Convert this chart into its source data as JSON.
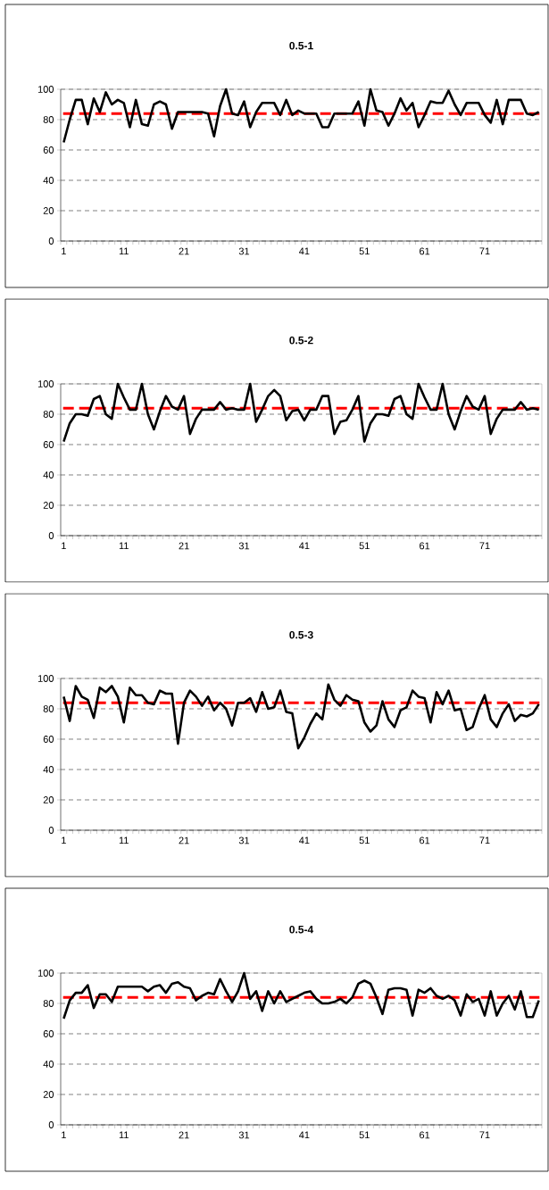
{
  "chart_data": [
    {
      "type": "line",
      "title": "0.5-1",
      "categories": [
        "1",
        null,
        null,
        null,
        null,
        null,
        null,
        null,
        null,
        null,
        "11",
        null,
        null,
        null,
        null,
        null,
        null,
        null,
        null,
        null,
        "21",
        null,
        null,
        null,
        null,
        null,
        null,
        null,
        null,
        null,
        "31",
        null,
        null,
        null,
        null,
        null,
        null,
        null,
        null,
        null,
        "41",
        null,
        null,
        null,
        null,
        null,
        null,
        null,
        null,
        null,
        "51",
        null,
        null,
        null,
        null,
        null,
        null,
        null,
        null,
        null,
        "61",
        null,
        null,
        null,
        null,
        null,
        null,
        null,
        null,
        null,
        "71",
        null,
        null,
        null,
        null,
        null,
        null,
        null,
        null,
        null
      ],
      "series": [
        {
          "color": "#000000",
          "values": [
            65,
            80,
            93,
            93,
            77,
            94,
            85,
            98,
            90,
            93,
            91,
            75,
            93,
            77,
            76,
            90,
            92,
            90,
            74,
            85,
            85,
            85,
            85,
            85,
            84,
            69,
            89,
            100,
            84,
            83,
            92,
            75,
            85,
            91,
            91,
            91,
            83,
            93,
            83,
            86,
            84,
            84,
            84,
            75,
            75,
            84,
            84,
            84,
            84,
            92,
            76,
            100,
            86,
            85,
            76,
            84,
            94,
            86,
            91,
            75,
            83,
            92,
            91,
            91,
            99,
            90,
            83,
            91,
            91,
            91,
            83,
            78,
            93,
            77,
            93,
            93,
            93,
            84,
            83,
            85
          ]
        }
      ],
      "ylim": [
        0,
        100
      ],
      "yticks": [
        0,
        20,
        40,
        60,
        80,
        100
      ],
      "grid": "y",
      "ref_lines": [
        {
          "axis": "y",
          "value": 84,
          "color": "#ff0000",
          "line_style": "dashed"
        }
      ]
    },
    {
      "type": "line",
      "title": "0.5-2",
      "categories": [
        "1",
        null,
        null,
        null,
        null,
        null,
        null,
        null,
        null,
        null,
        "11",
        null,
        null,
        null,
        null,
        null,
        null,
        null,
        null,
        null,
        "21",
        null,
        null,
        null,
        null,
        null,
        null,
        null,
        null,
        null,
        "31",
        null,
        null,
        null,
        null,
        null,
        null,
        null,
        null,
        null,
        "41",
        null,
        null,
        null,
        null,
        null,
        null,
        null,
        null,
        null,
        "51",
        null,
        null,
        null,
        null,
        null,
        null,
        null,
        null,
        null,
        "61",
        null,
        null,
        null,
        null,
        null,
        null,
        null,
        null,
        null,
        "71",
        null,
        null,
        null,
        null,
        null,
        null,
        null,
        null,
        null
      ],
      "series": [
        {
          "color": "#000000",
          "values": [
            62,
            74,
            80,
            80,
            79,
            90,
            92,
            80,
            77,
            100,
            91,
            83,
            83,
            100,
            80,
            70,
            82,
            92,
            85,
            83,
            92,
            67,
            77,
            83,
            83,
            83,
            88,
            83,
            84,
            83,
            83,
            100,
            75,
            83,
            92,
            96,
            92,
            76,
            82,
            83,
            76,
            83,
            83,
            92,
            92,
            67,
            75,
            76,
            83,
            92,
            62,
            74,
            80,
            80,
            79,
            90,
            92,
            80,
            77,
            100,
            91,
            83,
            83,
            100,
            80,
            70,
            82,
            92,
            85,
            83,
            92,
            67,
            77,
            83,
            83,
            83,
            88,
            83,
            84,
            83
          ]
        }
      ],
      "ylim": [
        0,
        100
      ],
      "yticks": [
        0,
        20,
        40,
        60,
        80,
        100
      ],
      "grid": "y",
      "ref_lines": [
        {
          "axis": "y",
          "value": 84,
          "color": "#ff0000",
          "line_style": "dashed"
        }
      ]
    },
    {
      "type": "line",
      "title": "0.5-3",
      "categories": [
        "1",
        null,
        null,
        null,
        null,
        null,
        null,
        null,
        null,
        null,
        "11",
        null,
        null,
        null,
        null,
        null,
        null,
        null,
        null,
        null,
        "21",
        null,
        null,
        null,
        null,
        null,
        null,
        null,
        null,
        null,
        "31",
        null,
        null,
        null,
        null,
        null,
        null,
        null,
        null,
        null,
        "41",
        null,
        null,
        null,
        null,
        null,
        null,
        null,
        null,
        null,
        "51",
        null,
        null,
        null,
        null,
        null,
        null,
        null,
        null,
        null,
        "61",
        null,
        null,
        null,
        null,
        null,
        null,
        null,
        null,
        null,
        "71",
        null,
        null,
        null,
        null,
        null,
        null,
        null,
        null,
        null
      ],
      "series": [
        {
          "color": "#000000",
          "values": [
            88,
            72,
            95,
            88,
            86,
            74,
            94,
            91,
            95,
            88,
            71,
            94,
            89,
            89,
            84,
            83,
            92,
            90,
            90,
            57,
            84,
            92,
            88,
            82,
            88,
            79,
            84,
            80,
            69,
            84,
            84,
            87,
            78,
            91,
            80,
            81,
            92,
            78,
            77,
            54,
            61,
            70,
            77,
            73,
            96,
            86,
            82,
            89,
            86,
            85,
            71,
            65,
            69,
            85,
            73,
            68,
            79,
            81,
            92,
            88,
            87,
            71,
            91,
            83,
            92,
            79,
            80,
            66,
            68,
            80,
            89,
            73,
            68,
            77,
            83,
            72,
            76,
            75,
            77,
            83
          ]
        }
      ],
      "ylim": [
        0,
        100
      ],
      "yticks": [
        0,
        20,
        40,
        60,
        80,
        100
      ],
      "grid": "y",
      "ref_lines": [
        {
          "axis": "y",
          "value": 84,
          "color": "#ff0000",
          "line_style": "dashed"
        }
      ]
    },
    {
      "type": "line",
      "title": "0.5-4",
      "categories": [
        "1",
        null,
        null,
        null,
        null,
        null,
        null,
        null,
        null,
        null,
        "11",
        null,
        null,
        null,
        null,
        null,
        null,
        null,
        null,
        null,
        "21",
        null,
        null,
        null,
        null,
        null,
        null,
        null,
        null,
        null,
        "31",
        null,
        null,
        null,
        null,
        null,
        null,
        null,
        null,
        null,
        "41",
        null,
        null,
        null,
        null,
        null,
        null,
        null,
        null,
        null,
        "51",
        null,
        null,
        null,
        null,
        null,
        null,
        null,
        null,
        null,
        "61",
        null,
        null,
        null,
        null,
        null,
        null,
        null,
        null,
        null,
        "71",
        null,
        null,
        null,
        null,
        null,
        null,
        null,
        null,
        null
      ],
      "series": [
        {
          "color": "#000000",
          "values": [
            70,
            82,
            87,
            87,
            92,
            77,
            86,
            86,
            81,
            91,
            91,
            91,
            91,
            91,
            88,
            91,
            92,
            87,
            93,
            94,
            91,
            90,
            82,
            85,
            87,
            86,
            96,
            88,
            81,
            88,
            100,
            83,
            88,
            75,
            88,
            80,
            88,
            81,
            83,
            85,
            87,
            88,
            83,
            80,
            80,
            81,
            83,
            80,
            84,
            93,
            95,
            93,
            84,
            73,
            89,
            90,
            90,
            89,
            72,
            89,
            87,
            90,
            85,
            83,
            85,
            82,
            72,
            86,
            81,
            83,
            72,
            88,
            72,
            80,
            85,
            76,
            88,
            71,
            71,
            82
          ]
        }
      ],
      "ylim": [
        0,
        100
      ],
      "yticks": [
        0,
        20,
        40,
        60,
        80,
        100
      ],
      "grid": "y",
      "ref_lines": [
        {
          "axis": "y",
          "value": 84,
          "color": "#ff0000",
          "line_style": "dashed"
        }
      ]
    }
  ]
}
